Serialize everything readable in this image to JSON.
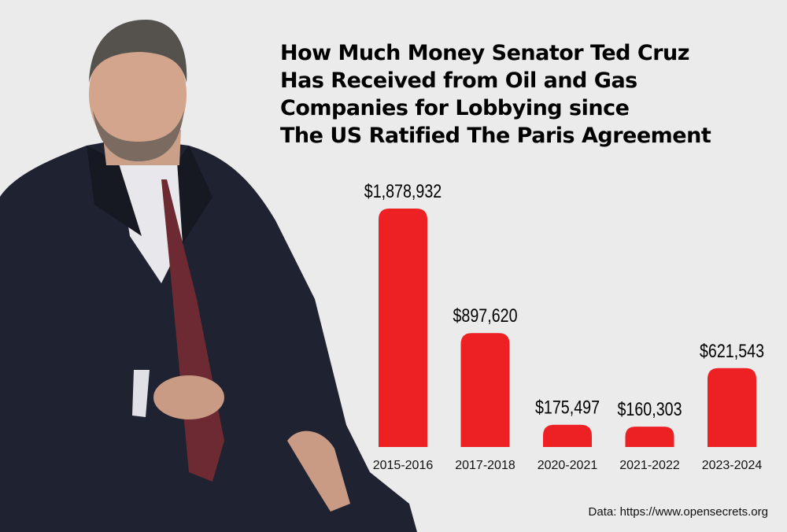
{
  "title_lines": [
    "How Much Money Senator Ted Cruz",
    "Has Received from Oil and Gas",
    "Companies for Lobbying since",
    "The US Ratified The Paris Agreement"
  ],
  "source": "Data: https://www.opensecrets.org",
  "colors": {
    "bar": "#ed2024",
    "background": "#ebebeb",
    "suit": "#1f2230"
  },
  "chart_data": {
    "type": "bar",
    "title": "How Much Money Senator Ted Cruz Has Received from Oil and Gas Companies for Lobbying since The US Ratified The Paris Agreement",
    "categories": [
      "2015-2016",
      "2017-2018",
      "2020-2021",
      "2021-2022",
      "2023-2024"
    ],
    "values": [
      1878932,
      897620,
      175497,
      160303,
      621543
    ],
    "labels": [
      "$1,878,932",
      "$897,620",
      "$175,497",
      "$160,303",
      "$621,543"
    ],
    "xlabel": "",
    "ylabel": "",
    "ylim": [
      0,
      1878932
    ],
    "grid": false,
    "legend": "none"
  }
}
